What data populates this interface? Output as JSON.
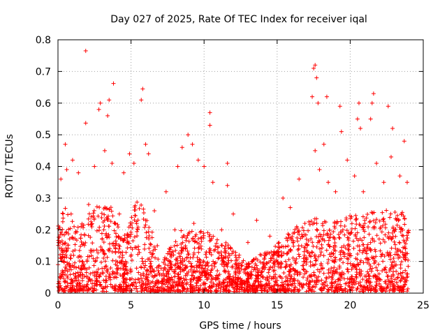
{
  "chart_data": {
    "type": "scatter",
    "title": "Day 027 of 2025, Rate Of TEC Index for receiver iqal",
    "xlabel": "GPS time / hours",
    "ylabel": "ROTI / TECUs",
    "xlim": [
      0,
      25
    ],
    "ylim": [
      0,
      0.8
    ],
    "x_ticks": [
      "0",
      "5",
      "10",
      "15",
      "20",
      "25"
    ],
    "y_ticks": [
      "0",
      "0.1",
      "0.2",
      "0.3",
      "0.4",
      "0.5",
      "0.6",
      "0.7",
      "0.8"
    ],
    "grid": true,
    "marker": "+",
    "color": "#ff0000",
    "points": [
      [
        1.9,
        0.765
      ],
      [
        3.8,
        0.662
      ],
      [
        5.8,
        0.645
      ],
      [
        5.7,
        0.61
      ],
      [
        2.9,
        0.6
      ],
      [
        3.5,
        0.61
      ],
      [
        3.4,
        0.56
      ],
      [
        2.8,
        0.58
      ],
      [
        1.9,
        0.537
      ],
      [
        0.5,
        0.47
      ],
      [
        8.9,
        0.5
      ],
      [
        10.4,
        0.57
      ],
      [
        10.4,
        0.53
      ],
      [
        17.6,
        0.72
      ],
      [
        17.5,
        0.71
      ],
      [
        17.7,
        0.68
      ],
      [
        17.4,
        0.62
      ],
      [
        17.8,
        0.6
      ],
      [
        18.4,
        0.62
      ],
      [
        19.3,
        0.59
      ],
      [
        20.6,
        0.6
      ],
      [
        21.6,
        0.63
      ],
      [
        21.5,
        0.6
      ],
      [
        22.6,
        0.59
      ],
      [
        21.4,
        0.55
      ],
      [
        20.5,
        0.55
      ],
      [
        20.7,
        0.52
      ],
      [
        19.4,
        0.51
      ],
      [
        22.9,
        0.52
      ],
      [
        23.7,
        0.48
      ],
      [
        17.6,
        0.45
      ],
      [
        18.2,
        0.47
      ],
      [
        8.5,
        0.46
      ],
      [
        9.2,
        0.47
      ],
      [
        6.0,
        0.47
      ],
      [
        6.2,
        0.44
      ],
      [
        4.9,
        0.44
      ],
      [
        1.0,
        0.42
      ],
      [
        3.2,
        0.45
      ],
      [
        0.2,
        0.36
      ],
      [
        0.6,
        0.39
      ],
      [
        1.4,
        0.38
      ],
      [
        2.5,
        0.4
      ],
      [
        3.7,
        0.41
      ],
      [
        4.5,
        0.38
      ],
      [
        5.2,
        0.41
      ],
      [
        7.4,
        0.32
      ],
      [
        8.2,
        0.4
      ],
      [
        9.6,
        0.42
      ],
      [
        10.0,
        0.4
      ],
      [
        10.6,
        0.35
      ],
      [
        11.6,
        0.41
      ],
      [
        11.6,
        0.34
      ],
      [
        12.0,
        0.25
      ],
      [
        13.6,
        0.23
      ],
      [
        15.4,
        0.3
      ],
      [
        15.9,
        0.27
      ],
      [
        16.5,
        0.36
      ],
      [
        17.9,
        0.39
      ],
      [
        18.5,
        0.35
      ],
      [
        19.0,
        0.32
      ],
      [
        19.8,
        0.42
      ],
      [
        20.3,
        0.37
      ],
      [
        20.9,
        0.32
      ],
      [
        21.8,
        0.41
      ],
      [
        22.3,
        0.35
      ],
      [
        22.8,
        0.43
      ],
      [
        23.4,
        0.37
      ],
      [
        23.9,
        0.35
      ],
      [
        16.9,
        0.22
      ],
      [
        14.5,
        0.18
      ],
      [
        13.0,
        0.16
      ],
      [
        12.4,
        0.12
      ],
      [
        11.2,
        0.2
      ],
      [
        9.3,
        0.22
      ],
      [
        8.0,
        0.2
      ],
      [
        6.8,
        0.15
      ],
      [
        7.1,
        0.03
      ],
      [
        6.6,
        0.26
      ],
      [
        4.2,
        0.25
      ],
      [
        2.1,
        0.28
      ],
      [
        0.9,
        0.25
      ],
      [
        14.0,
        0.05
      ],
      [
        15.0,
        0.04
      ],
      [
        16.2,
        0.06
      ],
      [
        12.8,
        0.03
      ],
      [
        23.5,
        0.25
      ],
      [
        21.0,
        0.22
      ],
      [
        19.5,
        0.2
      ],
      [
        18.0,
        0.18
      ]
    ],
    "density_profile": [
      [
        0.0,
        0.22
      ],
      [
        0.5,
        0.27
      ],
      [
        1.0,
        0.24
      ],
      [
        1.5,
        0.22
      ],
      [
        2.0,
        0.24
      ],
      [
        2.5,
        0.28
      ],
      [
        3.0,
        0.28
      ],
      [
        3.5,
        0.3
      ],
      [
        4.0,
        0.22
      ],
      [
        4.5,
        0.17
      ],
      [
        5.0,
        0.24
      ],
      [
        5.5,
        0.3
      ],
      [
        6.0,
        0.25
      ],
      [
        6.5,
        0.18
      ],
      [
        7.0,
        0.07
      ],
      [
        7.5,
        0.13
      ],
      [
        8.0,
        0.16
      ],
      [
        8.5,
        0.2
      ],
      [
        9.0,
        0.2
      ],
      [
        9.5,
        0.19
      ],
      [
        10.0,
        0.2
      ],
      [
        10.5,
        0.18
      ],
      [
        11.0,
        0.16
      ],
      [
        11.5,
        0.16
      ],
      [
        12.0,
        0.13
      ],
      [
        12.5,
        0.11
      ],
      [
        13.0,
        0.1
      ],
      [
        13.5,
        0.11
      ],
      [
        14.0,
        0.12
      ],
      [
        14.5,
        0.13
      ],
      [
        15.0,
        0.15
      ],
      [
        15.5,
        0.17
      ],
      [
        16.0,
        0.2
      ],
      [
        16.5,
        0.21
      ],
      [
        17.0,
        0.22
      ],
      [
        17.5,
        0.25
      ],
      [
        18.0,
        0.23
      ],
      [
        18.5,
        0.22
      ],
      [
        19.0,
        0.22
      ],
      [
        19.5,
        0.23
      ],
      [
        20.0,
        0.24
      ],
      [
        20.5,
        0.25
      ],
      [
        21.0,
        0.24
      ],
      [
        21.5,
        0.26
      ],
      [
        22.0,
        0.25
      ],
      [
        22.5,
        0.26
      ],
      [
        23.0,
        0.25
      ],
      [
        23.5,
        0.26
      ],
      [
        24.0,
        0.2
      ]
    ]
  }
}
